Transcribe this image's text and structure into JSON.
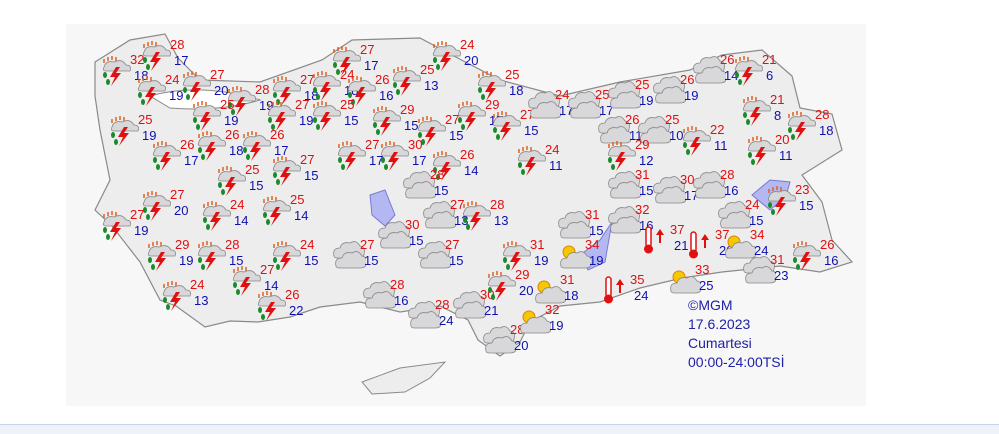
{
  "legend": {
    "copyright": "©MGM",
    "date": "17.6.2023",
    "day": "Cumartesi",
    "period": "00:00-24:00TSİ"
  },
  "colors": {
    "max_temp": "#e01010",
    "min_temp": "#1010b0",
    "land": "#f2f2f3",
    "water": "#b4b8f2"
  },
  "icon_types": {
    "storm": "thunderstorm-rain-icon",
    "cloud": "cloudy-icon",
    "suncloud": "partly-cloudy-icon",
    "hot": "hot-thermometer-icon"
  },
  "stations": [
    {
      "icon": "storm",
      "hi": "32",
      "lo": "18"
    },
    {
      "icon": "storm",
      "hi": "28",
      "lo": "17"
    },
    {
      "icon": "storm",
      "hi": "24",
      "lo": "19"
    },
    {
      "icon": "storm",
      "hi": "27",
      "lo": "20"
    },
    {
      "icon": "storm",
      "hi": "25",
      "lo": "19"
    },
    {
      "icon": "storm",
      "hi": "28",
      "lo": "19"
    },
    {
      "icon": "storm",
      "hi": "25",
      "lo": "19"
    },
    {
      "icon": "storm",
      "hi": "27",
      "lo": "18"
    },
    {
      "icon": "storm",
      "hi": "24",
      "lo": "18"
    },
    {
      "icon": "storm",
      "hi": "27",
      "lo": "17"
    },
    {
      "icon": "storm",
      "hi": "26",
      "lo": "16"
    },
    {
      "icon": "storm",
      "hi": "25",
      "lo": "13"
    },
    {
      "icon": "storm",
      "hi": "27",
      "lo": "19"
    },
    {
      "icon": "storm",
      "hi": "25",
      "lo": "15"
    },
    {
      "icon": "storm",
      "hi": "26",
      "lo": "17"
    },
    {
      "icon": "storm",
      "hi": "26",
      "lo": "18"
    },
    {
      "icon": "storm",
      "hi": "26",
      "lo": "17"
    },
    {
      "icon": "storm",
      "hi": "29",
      "lo": "15"
    },
    {
      "icon": "storm",
      "hi": "27",
      "lo": "15"
    },
    {
      "icon": "storm",
      "hi": "29",
      "lo": "17"
    },
    {
      "icon": "storm",
      "hi": "27",
      "lo": "15"
    },
    {
      "icon": "storm",
      "hi": "24",
      "lo": "20"
    },
    {
      "icon": "storm",
      "hi": "25",
      "lo": "18"
    },
    {
      "icon": "cloud",
      "hi": "24",
      "lo": "17"
    },
    {
      "icon": "cloud",
      "hi": "25",
      "lo": "17"
    },
    {
      "icon": "cloud",
      "hi": "25",
      "lo": "19"
    },
    {
      "icon": "cloud",
      "hi": "26",
      "lo": "19"
    },
    {
      "icon": "cloud",
      "hi": "26",
      "lo": "14"
    },
    {
      "icon": "storm",
      "hi": "21",
      "lo": "6"
    },
    {
      "icon": "cloud",
      "hi": "26",
      "lo": "11"
    },
    {
      "icon": "cloud",
      "hi": "25",
      "lo": "10"
    },
    {
      "icon": "storm",
      "hi": "22",
      "lo": "11"
    },
    {
      "icon": "storm",
      "hi": "21",
      "lo": "8"
    },
    {
      "icon": "storm",
      "hi": "20",
      "lo": "11"
    },
    {
      "icon": "storm",
      "hi": "28",
      "lo": "18"
    },
    {
      "icon": "storm",
      "hi": "29",
      "lo": "12"
    },
    {
      "icon": "storm",
      "hi": "24",
      "lo": "11"
    },
    {
      "icon": "storm",
      "hi": "27",
      "lo": "17"
    },
    {
      "icon": "storm",
      "hi": "30",
      "lo": "17"
    },
    {
      "icon": "storm",
      "hi": "26",
      "lo": "14"
    },
    {
      "icon": "storm",
      "hi": "27",
      "lo": "15"
    },
    {
      "icon": "storm",
      "hi": "25",
      "lo": "15"
    },
    {
      "icon": "storm",
      "hi": "27",
      "lo": "20"
    },
    {
      "icon": "storm",
      "hi": "24",
      "lo": "14"
    },
    {
      "icon": "storm",
      "hi": "25",
      "lo": "14"
    },
    {
      "icon": "storm",
      "hi": "27",
      "lo": "19"
    },
    {
      "icon": "storm",
      "hi": "29",
      "lo": "19"
    },
    {
      "icon": "storm",
      "hi": "28",
      "lo": "15"
    },
    {
      "icon": "storm",
      "hi": "24",
      "lo": "15"
    },
    {
      "icon": "storm",
      "hi": "27",
      "lo": "14"
    },
    {
      "icon": "storm",
      "hi": "24",
      "lo": "13"
    },
    {
      "icon": "storm",
      "hi": "26",
      "lo": "22"
    },
    {
      "icon": "cloud",
      "hi": "28",
      "lo": "15"
    },
    {
      "icon": "cloud",
      "hi": "27",
      "lo": "13"
    },
    {
      "icon": "storm",
      "hi": "28",
      "lo": "13"
    },
    {
      "icon": "cloud",
      "hi": "30",
      "lo": "15"
    },
    {
      "icon": "cloud",
      "hi": "27",
      "lo": "15"
    },
    {
      "icon": "cloud",
      "hi": "27",
      "lo": "15"
    },
    {
      "icon": "cloud",
      "hi": "28",
      "lo": "16"
    },
    {
      "icon": "cloud",
      "hi": "28",
      "lo": "24"
    },
    {
      "icon": "cloud",
      "hi": "30",
      "lo": "21"
    },
    {
      "icon": "cloud",
      "hi": "28",
      "lo": "20"
    },
    {
      "icon": "storm",
      "hi": "31",
      "lo": "19"
    },
    {
      "icon": "storm",
      "hi": "29",
      "lo": "20"
    },
    {
      "icon": "suncloud",
      "hi": "31",
      "lo": "18"
    },
    {
      "icon": "suncloud",
      "hi": "32",
      "lo": "19"
    },
    {
      "icon": "suncloud",
      "hi": "34",
      "lo": "19"
    },
    {
      "icon": "cloud",
      "hi": "31",
      "lo": "15"
    },
    {
      "icon": "cloud",
      "hi": "31",
      "lo": "15"
    },
    {
      "icon": "cloud",
      "hi": "32",
      "lo": "16"
    },
    {
      "icon": "hot",
      "hi": "35",
      "lo": "24"
    },
    {
      "icon": "hot",
      "hi": "37",
      "lo": "21"
    },
    {
      "icon": "hot",
      "hi": "37",
      "lo": "20"
    },
    {
      "icon": "cloud",
      "hi": "30",
      "lo": "17"
    },
    {
      "icon": "cloud",
      "hi": "28",
      "lo": "16"
    },
    {
      "icon": "cloud",
      "hi": "24",
      "lo": "15"
    },
    {
      "icon": "suncloud",
      "hi": "34",
      "lo": "24"
    },
    {
      "icon": "suncloud",
      "hi": "33",
      "lo": "25"
    },
    {
      "icon": "cloud",
      "hi": "31",
      "lo": "23"
    },
    {
      "icon": "storm",
      "hi": "23",
      "lo": "15"
    },
    {
      "icon": "storm",
      "hi": "26",
      "lo": "16"
    }
  ]
}
